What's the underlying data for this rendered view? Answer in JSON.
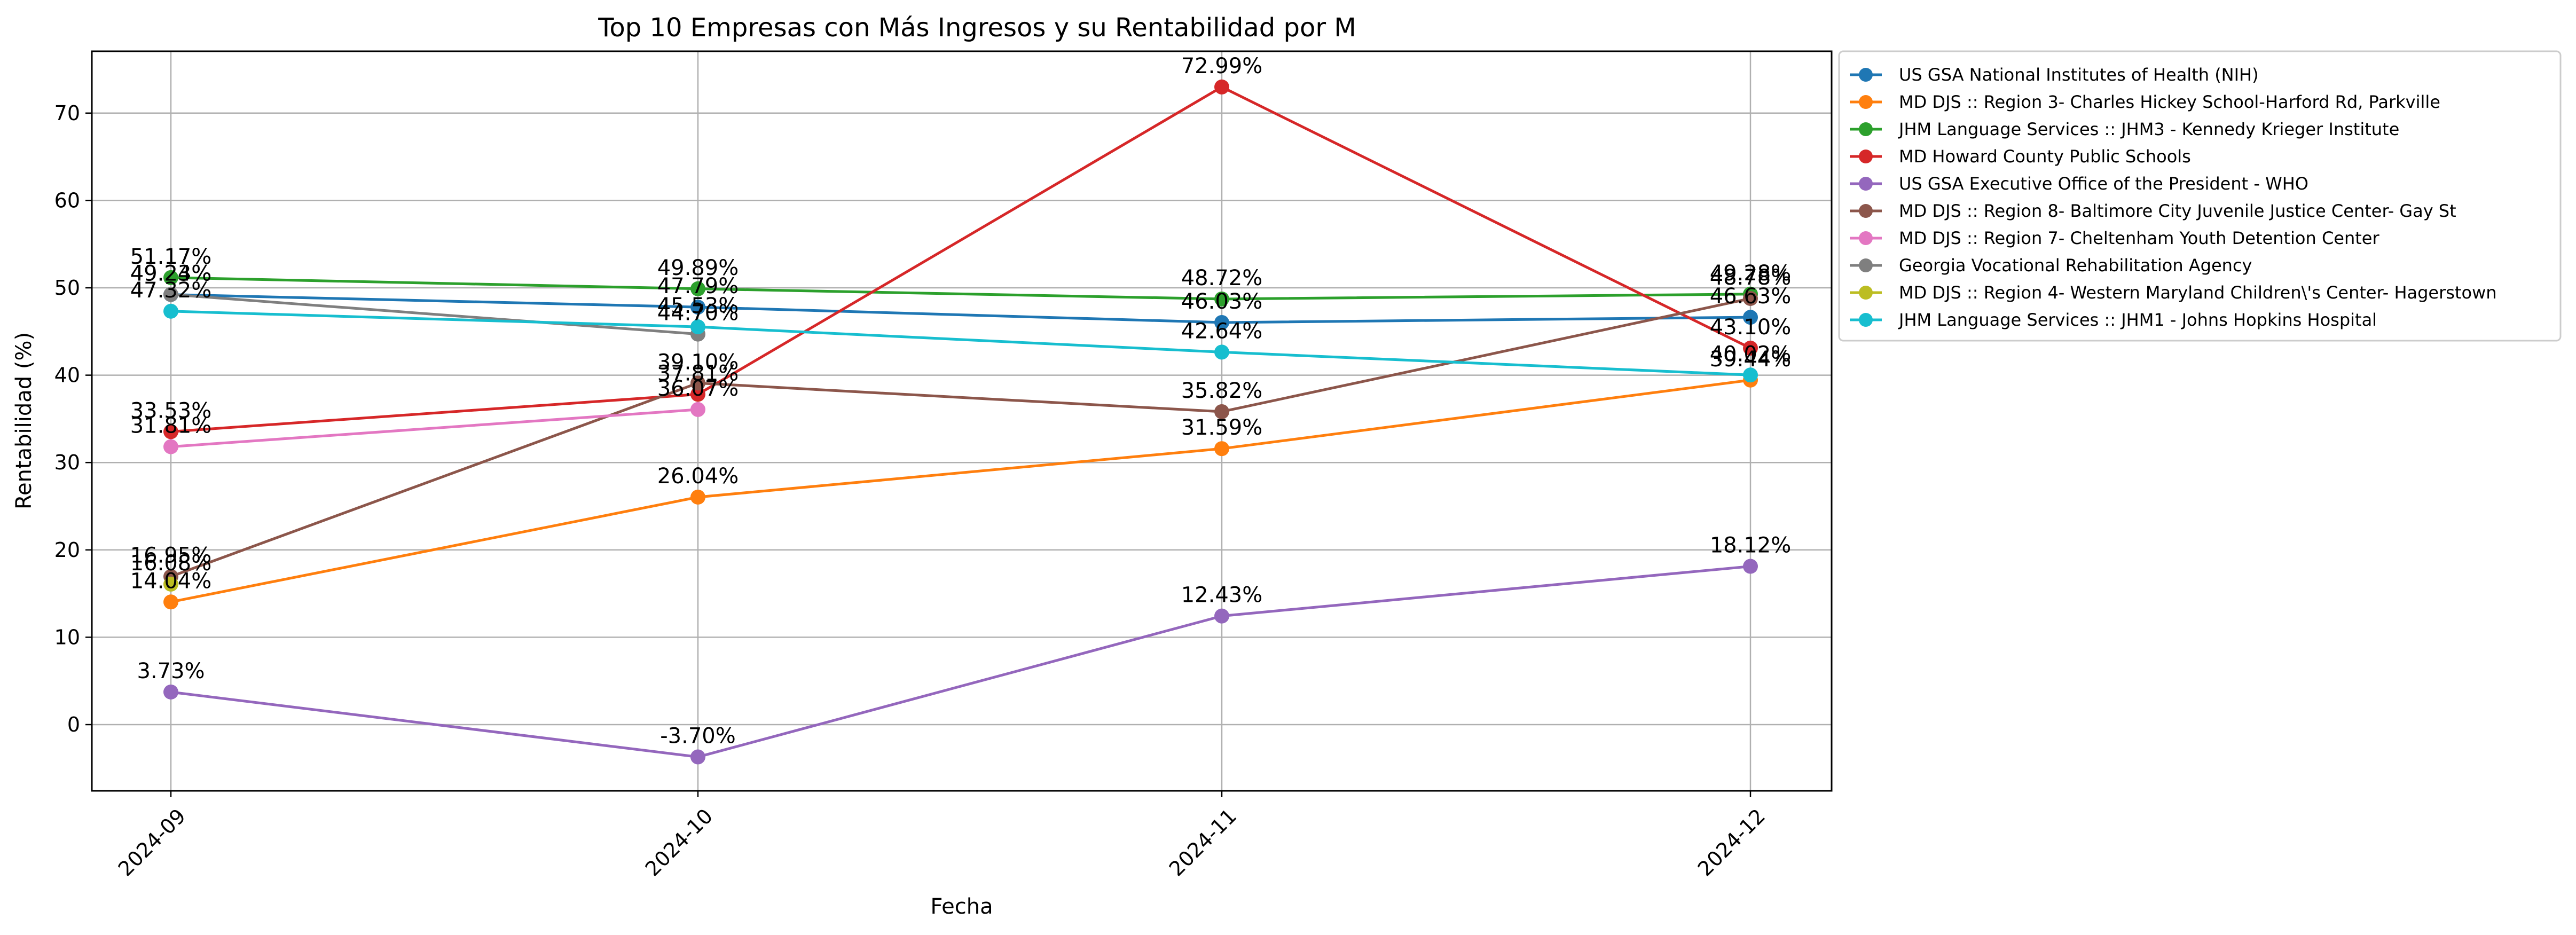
{
  "chart_data": {
    "type": "line",
    "title": "Top 10 Empresas con Más Ingresos y su Rentabilidad por M",
    "xlabel": "Fecha",
    "ylabel": "Rentabilidad (%)",
    "categories": [
      "2024-09",
      "2024-10",
      "2024-11",
      "2024-12"
    ],
    "ylim": [
      -7.5,
      76.5
    ],
    "yticks": [
      0,
      10,
      20,
      30,
      40,
      50,
      60,
      70
    ],
    "grid": true,
    "legend_position": "outside-right-top",
    "series": [
      {
        "name": "US GSA National Institutes of Health (NIH)",
        "color": "#1f77b4",
        "values": [
          49.23,
          47.79,
          46.03,
          46.63
        ],
        "labels": [
          "49.23%",
          "47.79%",
          "46.03%",
          "46.63%"
        ]
      },
      {
        "name": "MD DJS  :: Region 3- Charles Hickey School-Harford Rd, Parkville",
        "color": "#ff7f0e",
        "values": [
          14.04,
          26.04,
          31.59,
          39.44
        ],
        "labels": [
          "14.04%",
          "26.04%",
          "31.59%",
          "39.44%"
        ]
      },
      {
        "name": "JHM Language Services :: JHM3 - Kennedy Krieger Institute",
        "color": "#2ca02c",
        "values": [
          51.17,
          49.89,
          48.72,
          49.28
        ],
        "labels": [
          "51.17%",
          "49.89%",
          "48.72%",
          "49.28%"
        ]
      },
      {
        "name": "MD Howard County Public Schools",
        "color": "#d62728",
        "values": [
          33.53,
          37.81,
          72.99,
          43.1
        ],
        "labels": [
          "33.53%",
          "37.81%",
          "72.99%",
          "43.10%"
        ]
      },
      {
        "name": "US GSA Executive Office of the President - WHO",
        "color": "#9467bd",
        "values": [
          3.73,
          -3.7,
          12.43,
          18.12
        ],
        "labels": [
          "3.73%",
          "-3.70%",
          "12.43%",
          "18.12%"
        ]
      },
      {
        "name": "MD DJS  :: Region 8- Baltimore City Juvenile Justice Center- Gay St",
        "color": "#8c564b",
        "values": [
          16.95,
          39.1,
          35.82,
          48.78
        ],
        "labels": [
          "16.95%",
          "39.10%",
          "35.82%",
          "48.78%"
        ]
      },
      {
        "name": "MD DJS  :: Region 7- Cheltenham Youth Detention Center",
        "color": "#e377c2",
        "values": [
          31.81,
          36.07,
          null,
          null
        ],
        "labels": [
          "31.81%",
          "36.07%",
          "",
          ""
        ]
      },
      {
        "name": "Georgia Vocational Rehabilitation Agency",
        "color": "#7f7f7f",
        "values": [
          49.24,
          44.7,
          null,
          null
        ],
        "labels": [
          "49.24%",
          "44.70%",
          "",
          ""
        ]
      },
      {
        "name": "MD DJS  :: Region 4- Western Maryland Children\\'s Center- Hagerstown",
        "color": "#bcbd22",
        "values": [
          16.08,
          null,
          null,
          null
        ],
        "labels": [
          "16.08%",
          "",
          "",
          ""
        ]
      },
      {
        "name": "JHM Language Services :: JHM1 - Johns Hopkins Hospital",
        "color": "#17becf",
        "values": [
          47.32,
          45.53,
          42.64,
          40.02
        ],
        "labels": [
          "47.32%",
          "45.53%",
          "42.64%",
          "40.02%"
        ]
      }
    ]
  }
}
